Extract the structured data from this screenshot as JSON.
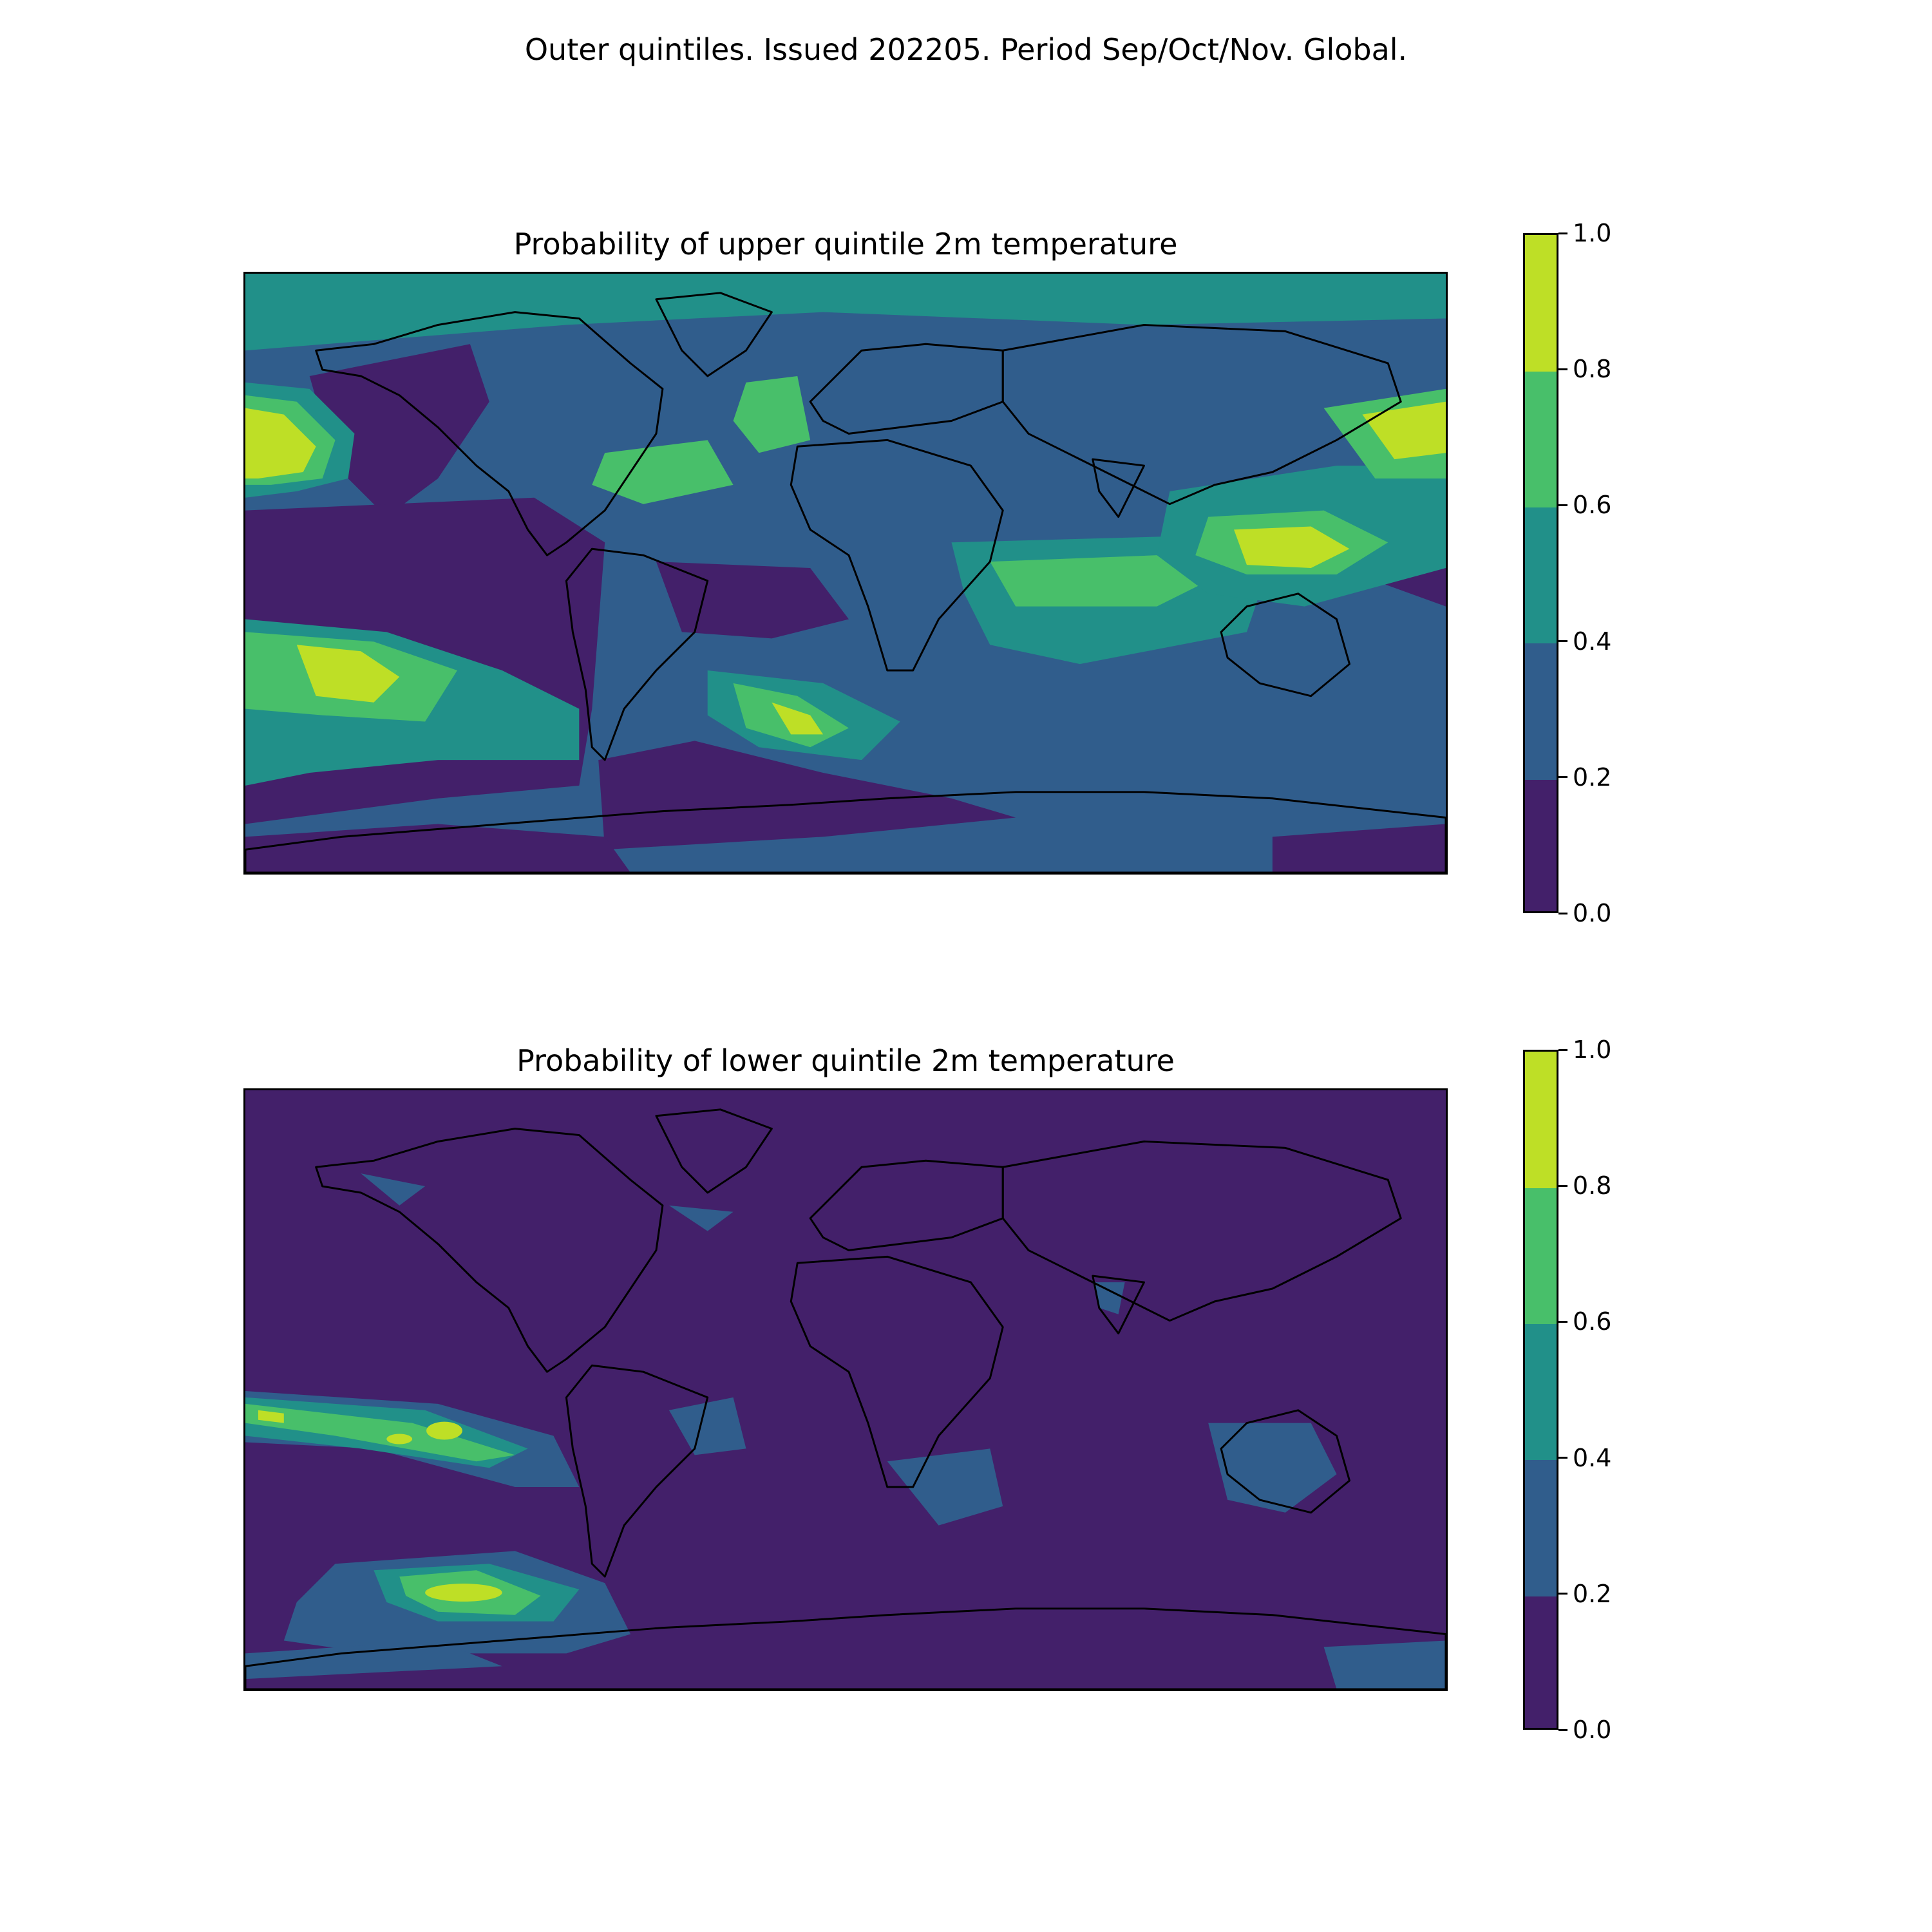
{
  "title": "Outer quintiles. Issued 202205. Period Sep/Oct/Nov. Global.",
  "colors": {
    "levels": [
      "#43206a",
      "#305d8c",
      "#219089",
      "#48bf6a",
      "#bedf26"
    ],
    "coastline": "#000000"
  },
  "panels": [
    {
      "title": "Probability of upper quintile 2m temperature",
      "colorbar": {
        "ticks": [
          "0.0",
          "0.2",
          "0.4",
          "0.6",
          "0.8",
          "1.0"
        ]
      }
    },
    {
      "title": "Probability of lower quintile 2m temperature",
      "colorbar": {
        "ticks": [
          "0.0",
          "0.2",
          "0.4",
          "0.6",
          "0.8",
          "1.0"
        ]
      }
    }
  ],
  "chart_data": [
    {
      "type": "heatmap",
      "title": "Probability of upper quintile 2m temperature",
      "projection": "global equirectangular",
      "levels": [
        0.0,
        0.2,
        0.4,
        0.6,
        0.8,
        1.0
      ],
      "colorbar_range": [
        0.0,
        1.0
      ],
      "dominant_level": "0.2-0.4"
    },
    {
      "type": "heatmap",
      "title": "Probability of lower quintile 2m temperature",
      "projection": "global equirectangular",
      "levels": [
        0.0,
        0.2,
        0.4,
        0.6,
        0.8,
        1.0
      ],
      "colorbar_range": [
        0.0,
        1.0
      ],
      "dominant_level": "0.0-0.2"
    }
  ]
}
